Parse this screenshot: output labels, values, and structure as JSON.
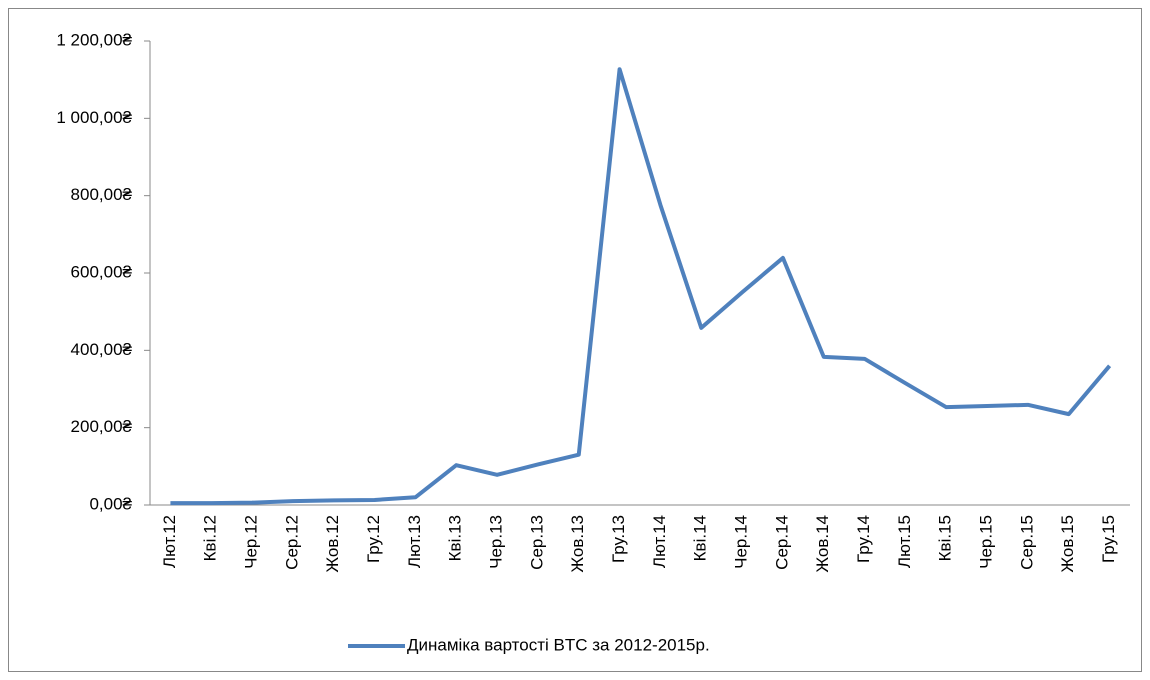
{
  "chart_data": {
    "type": "line",
    "categories": [
      "Лют.12",
      "Кві.12",
      "Чер.12",
      "Сер.12",
      "Жов.12",
      "Гру.12",
      "Лют.13",
      "Кві.13",
      "Чер.13",
      "Сер.13",
      "Жов.13",
      "Гру.13",
      "Лют.14",
      "Кві.14",
      "Чер.14",
      "Сер.14",
      "Жов.14",
      "Гру.14",
      "Лют.15",
      "Кві.15",
      "Чер.15",
      "Сер.15",
      "Жов.15",
      "Гру.15"
    ],
    "series": [
      {
        "name": "Динаміка вартості BTC за 2012-2015р.",
        "color": "#4f81bd",
        "values": [
          5,
          4.9,
          6,
          10,
          12,
          13,
          20,
          103,
          78,
          105,
          130,
          1127,
          776,
          458,
          550,
          639,
          383,
          378,
          315,
          253,
          256,
          259,
          235,
          360
        ]
      }
    ],
    "ylim": [
      0,
      1200
    ],
    "yticks": [
      {
        "value": 0,
        "label": "0,00₴"
      },
      {
        "value": 200,
        "label": "200,00₴"
      },
      {
        "value": 400,
        "label": "400,00₴"
      },
      {
        "value": 600,
        "label": "600,00₴"
      },
      {
        "value": 800,
        "label": "800,00₴"
      },
      {
        "value": 1000,
        "label": "1 000,00₴"
      },
      {
        "value": 1200,
        "label": "1 200,00₴"
      }
    ],
    "legend": "bottom"
  }
}
